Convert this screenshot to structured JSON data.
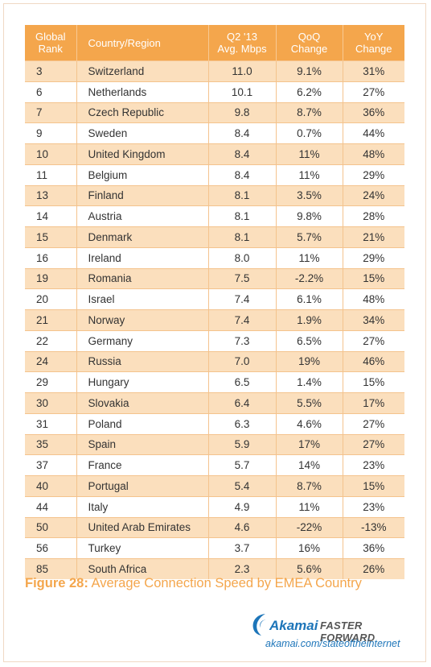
{
  "table": {
    "headers": {
      "rank": [
        "Global",
        "Rank"
      ],
      "country": "Country/Region",
      "speed": [
        "Q2 '13",
        "Avg. Mbps"
      ],
      "qoq": [
        "QoQ",
        "Change"
      ],
      "yoy": [
        "YoY",
        "Change"
      ]
    },
    "rows": [
      {
        "rank": "3",
        "country": "Switzerland",
        "speed": "11.0",
        "qoq": "9.1%",
        "yoy": "31%"
      },
      {
        "rank": "6",
        "country": "Netherlands",
        "speed": "10.1",
        "qoq": "6.2%",
        "yoy": "27%"
      },
      {
        "rank": "7",
        "country": "Czech Republic",
        "speed": "9.8",
        "qoq": "8.7%",
        "yoy": "36%"
      },
      {
        "rank": "9",
        "country": "Sweden",
        "speed": "8.4",
        "qoq": "0.7%",
        "yoy": "44%"
      },
      {
        "rank": "10",
        "country": "United Kingdom",
        "speed": "8.4",
        "qoq": "11%",
        "yoy": "48%"
      },
      {
        "rank": "11",
        "country": "Belgium",
        "speed": "8.4",
        "qoq": "11%",
        "yoy": "29%"
      },
      {
        "rank": "13",
        "country": "Finland",
        "speed": "8.1",
        "qoq": "3.5%",
        "yoy": "24%"
      },
      {
        "rank": "14",
        "country": "Austria",
        "speed": "8.1",
        "qoq": "9.8%",
        "yoy": "28%"
      },
      {
        "rank": "15",
        "country": "Denmark",
        "speed": "8.1",
        "qoq": "5.7%",
        "yoy": "21%"
      },
      {
        "rank": "16",
        "country": "Ireland",
        "speed": "8.0",
        "qoq": "11%",
        "yoy": "29%"
      },
      {
        "rank": "19",
        "country": "Romania",
        "speed": "7.5",
        "qoq": "-2.2%",
        "yoy": "15%"
      },
      {
        "rank": "20",
        "country": "Israel",
        "speed": "7.4",
        "qoq": "6.1%",
        "yoy": "48%"
      },
      {
        "rank": "21",
        "country": "Norway",
        "speed": "7.4",
        "qoq": "1.9%",
        "yoy": "34%"
      },
      {
        "rank": "22",
        "country": "Germany",
        "speed": "7.3",
        "qoq": "6.5%",
        "yoy": "27%"
      },
      {
        "rank": "24",
        "country": "Russia",
        "speed": "7.0",
        "qoq": "19%",
        "yoy": "46%"
      },
      {
        "rank": "29",
        "country": "Hungary",
        "speed": "6.5",
        "qoq": "1.4%",
        "yoy": "15%"
      },
      {
        "rank": "30",
        "country": "Slovakia",
        "speed": "6.4",
        "qoq": "5.5%",
        "yoy": "17%"
      },
      {
        "rank": "31",
        "country": "Poland",
        "speed": "6.3",
        "qoq": "4.6%",
        "yoy": "27%"
      },
      {
        "rank": "35",
        "country": "Spain",
        "speed": "5.9",
        "qoq": "17%",
        "yoy": "27%"
      },
      {
        "rank": "37",
        "country": "France",
        "speed": "5.7",
        "qoq": "14%",
        "yoy": "23%"
      },
      {
        "rank": "40",
        "country": "Portugal",
        "speed": "5.4",
        "qoq": "8.7%",
        "yoy": "15%"
      },
      {
        "rank": "44",
        "country": "Italy",
        "speed": "4.9",
        "qoq": "11%",
        "yoy": "23%"
      },
      {
        "rank": "50",
        "country": "United Arab Emirates",
        "speed": "4.6",
        "qoq": "-22%",
        "yoy": "-13%"
      },
      {
        "rank": "56",
        "country": "Turkey",
        "speed": "3.7",
        "qoq": "16%",
        "yoy": "36%"
      },
      {
        "rank": "85",
        "country": "South Africa",
        "speed": "2.3",
        "qoq": "5.6%",
        "yoy": "26%"
      }
    ]
  },
  "caption": {
    "figure": "Figure 28:",
    "text": "Average Connection Speed by EMEA Country"
  },
  "footer": {
    "brand": "Akamai",
    "tagline": "FASTER FORWARD",
    "url": "akamai.com/stateoftheinternet",
    "logo_icon": "akamai-swoosh-icon"
  },
  "colors": {
    "header_bg": "#f4a64c",
    "row_shade": "#fbdfbd",
    "caption": "#f4a64c",
    "brand_blue": "#1d75b9"
  }
}
